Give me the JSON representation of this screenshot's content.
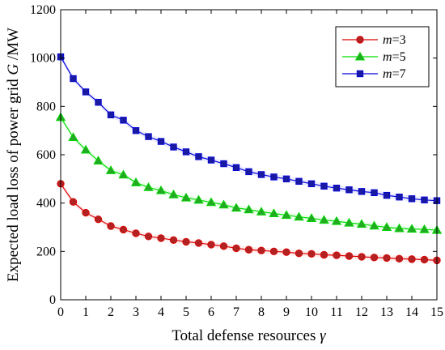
{
  "chart_data": {
    "type": "line",
    "xlabel": "Total defense resources γ",
    "ylabel": "Expected load loss of power grid G /MW",
    "xlim": [
      0,
      15
    ],
    "ylim": [
      0,
      1200
    ],
    "xticks": [
      0,
      1,
      2,
      3,
      4,
      5,
      6,
      7,
      8,
      9,
      10,
      11,
      12,
      13,
      14,
      15
    ],
    "yticks": [
      0,
      200,
      400,
      600,
      800,
      1000,
      1200
    ],
    "grid": false,
    "legend_position": "top-right",
    "x": [
      0,
      0.5,
      1,
      1.5,
      2,
      2.5,
      3,
      3.5,
      4,
      4.5,
      5,
      5.5,
      6,
      6.5,
      7,
      7.5,
      8,
      8.5,
      9,
      9.5,
      10,
      10.5,
      11,
      11.5,
      12,
      12.5,
      13,
      13.5,
      14,
      14.5,
      15
    ],
    "series": [
      {
        "name": "m=3",
        "name_italic": "m",
        "name_rest": "=3",
        "color": "#e00000",
        "marker": "circle",
        "values": [
          480,
          405,
          360,
          333,
          305,
          290,
          275,
          262,
          255,
          247,
          240,
          235,
          228,
          222,
          213,
          207,
          204,
          200,
          197,
          192,
          190,
          186,
          184,
          181,
          178,
          175,
          173,
          170,
          168,
          166,
          163
        ]
      },
      {
        "name": "m=5",
        "name_italic": "m",
        "name_rest": "=5",
        "color": "#00dd00",
        "marker": "triangle",
        "values": [
          755,
          672,
          620,
          575,
          535,
          517,
          485,
          465,
          452,
          435,
          422,
          413,
          403,
          393,
          380,
          373,
          364,
          357,
          350,
          343,
          337,
          330,
          325,
          318,
          313,
          306,
          300,
          295,
          293,
          291,
          288
        ]
      },
      {
        "name": "m=7",
        "name_italic": "m",
        "name_rest": "=7",
        "color": "#0000e0",
        "marker": "square",
        "values": [
          1005,
          915,
          860,
          817,
          765,
          743,
          700,
          675,
          655,
          632,
          612,
          592,
          578,
          563,
          547,
          530,
          518,
          508,
          500,
          490,
          480,
          470,
          462,
          455,
          448,
          443,
          432,
          425,
          418,
          413,
          410
        ]
      }
    ]
  }
}
